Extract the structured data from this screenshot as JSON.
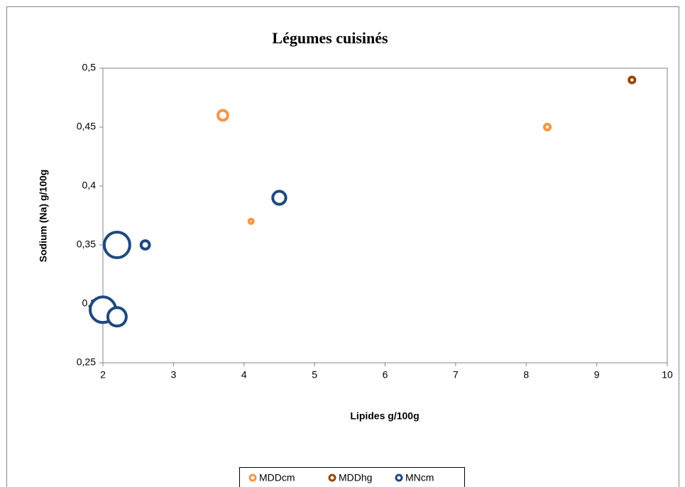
{
  "chart_data": {
    "type": "bubble",
    "title": "Légumes cuisinés",
    "x_label": "Lipides g/100g",
    "y_label": "Sodium (Na) g/100g",
    "xlim": [
      2,
      10
    ],
    "xticks": [
      2,
      3,
      4,
      5,
      6,
      7,
      8,
      9,
      10
    ],
    "ylim": [
      0.25,
      0.5
    ],
    "yticks": [
      {
        "value": 0.25,
        "label": "0,25"
      },
      {
        "value": 0.3,
        "label": "0,3"
      },
      {
        "value": 0.35,
        "label": "0,35"
      },
      {
        "value": 0.4,
        "label": "0,4"
      },
      {
        "value": 0.45,
        "label": "0,45"
      },
      {
        "value": 0.5,
        "label": "0,5"
      }
    ],
    "grid": false,
    "legend": "bottom",
    "series": [
      {
        "name": "MDDcm",
        "color": "#f79646",
        "x": [
          3.7,
          4.1,
          8.3
        ],
        "values": [
          0.46,
          0.37,
          0.45
        ],
        "sizes": [
          3.2,
          1,
          1.5
        ]
      },
      {
        "name": "MDDhg",
        "color": "#984807",
        "x": [
          9.5
        ],
        "values": [
          0.49
        ],
        "sizes": [
          1.5
        ]
      },
      {
        "name": "MNcm",
        "color": "#1f497d",
        "x": [
          2.2,
          2.6,
          4.5,
          2.0,
          2.2
        ],
        "values": [
          0.35,
          0.35,
          0.39,
          0.295,
          0.289
        ],
        "sizes": [
          16,
          2.5,
          5,
          16,
          9
        ]
      }
    ]
  }
}
